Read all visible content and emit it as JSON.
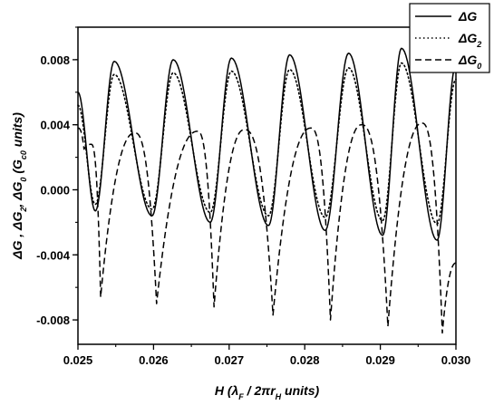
{
  "chart_data": {
    "type": "line",
    "xlabel": "H (λF / 2πrH units)",
    "ylabel": "ΔG , ΔG2, ΔG0 (Gc0 units)",
    "xlim": [
      0.025,
      0.03
    ],
    "ylim": [
      -0.0095,
      0.01
    ],
    "x_ticks": [
      0.025,
      0.026,
      0.027,
      0.028,
      0.029,
      0.03
    ],
    "x_tick_labels": [
      "0.025",
      "0.026",
      "0.027",
      "0.028",
      "0.029",
      "0.030"
    ],
    "y_ticks": [
      -0.008,
      -0.004,
      0.0,
      0.004,
      0.008
    ],
    "y_tick_labels": [
      "-0.008",
      "-0.004",
      "0.000",
      "0.004",
      "0.008"
    ],
    "legend_position": "top-right",
    "series": [
      {
        "name": "ΔG",
        "legend_main": "ΔG",
        "legend_sub": "",
        "style": "solid",
        "maxima": [
          [
            0.02548,
            0.0079
          ],
          [
            0.02626,
            0.008
          ],
          [
            0.02703,
            0.0081
          ],
          [
            0.0278,
            0.0083
          ],
          [
            0.02858,
            0.0084
          ],
          [
            0.02928,
            0.0087
          ]
        ],
        "minima": [
          [
            0.025,
            0.006
          ],
          [
            0.02523,
            -0.0013
          ],
          [
            0.02598,
            -0.0016
          ],
          [
            0.02675,
            -0.002
          ],
          [
            0.02752,
            -0.0022
          ],
          [
            0.02827,
            -0.0025
          ],
          [
            0.02903,
            -0.0028
          ],
          [
            0.02975,
            -0.0031
          ],
          [
            0.03,
            0.0077
          ]
        ]
      },
      {
        "name": "ΔG2",
        "legend_main": "ΔG",
        "legend_sub": "2",
        "style": "dotted",
        "maxima": [
          [
            0.02548,
            0.0071
          ],
          [
            0.02626,
            0.0072
          ],
          [
            0.02703,
            0.0073
          ],
          [
            0.0278,
            0.0074
          ],
          [
            0.02858,
            0.0075
          ],
          [
            0.02928,
            0.0078
          ]
        ],
        "minima": [
          [
            0.025,
            0.0052
          ],
          [
            0.02523,
            -0.0009
          ],
          [
            0.02598,
            -0.0012
          ],
          [
            0.02675,
            -0.0014
          ],
          [
            0.02752,
            -0.0016
          ],
          [
            0.02827,
            -0.0017
          ],
          [
            0.02903,
            -0.0019
          ],
          [
            0.02975,
            -0.0021
          ],
          [
            0.03,
            0.0068
          ]
        ]
      },
      {
        "name": "ΔG0",
        "legend_main": "ΔG",
        "legend_sub": "0",
        "style": "dashed",
        "maxima": [
          [
            0.025,
            0.0038
          ],
          [
            0.025175,
            0.0028
          ],
          [
            0.02575,
            0.0035
          ],
          [
            0.02658,
            0.0036
          ],
          [
            0.0272,
            0.0037
          ],
          [
            0.02808,
            0.0038
          ],
          [
            0.02875,
            0.004
          ],
          [
            0.02955,
            0.0041
          ],
          [
            0.03,
            -0.0045
          ]
        ],
        "minima": [
          [
            0.02508,
            0.0025
          ],
          [
            0.0253,
            -0.0066
          ],
          [
            0.02604,
            -0.007
          ],
          [
            0.0268,
            -0.0072
          ],
          [
            0.02758,
            -0.0077
          ],
          [
            0.02834,
            -0.008
          ],
          [
            0.0291,
            -0.0084
          ],
          [
            0.02982,
            -0.0088
          ]
        ]
      }
    ]
  }
}
